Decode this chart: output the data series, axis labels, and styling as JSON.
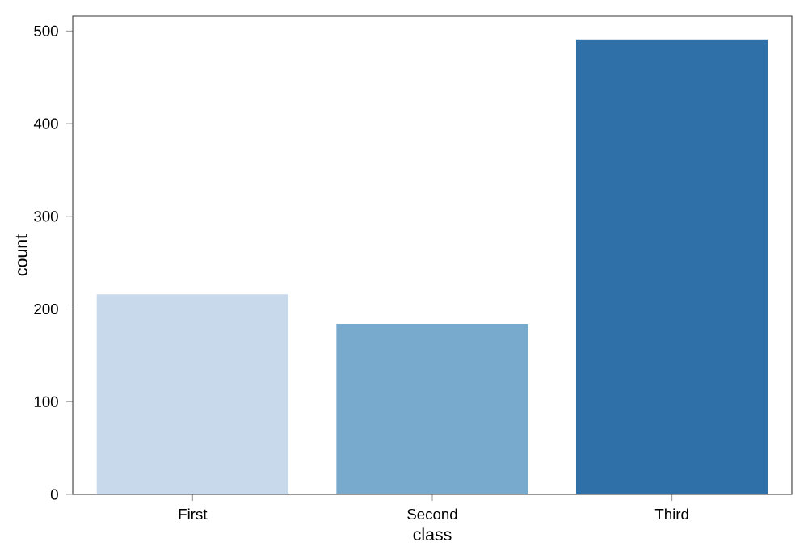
{
  "chart_data": {
    "type": "bar",
    "xlabel": "class",
    "ylabel": "count",
    "categories": [
      "First",
      "Second",
      "Third"
    ],
    "values": [
      216,
      184,
      491
    ],
    "colors": [
      "#c8d9eb",
      "#77aacd",
      "#2f70a8"
    ],
    "ylim": [
      0,
      516
    ],
    "yticks": [
      0,
      100,
      200,
      300,
      400,
      500
    ],
    "grid": false
  }
}
